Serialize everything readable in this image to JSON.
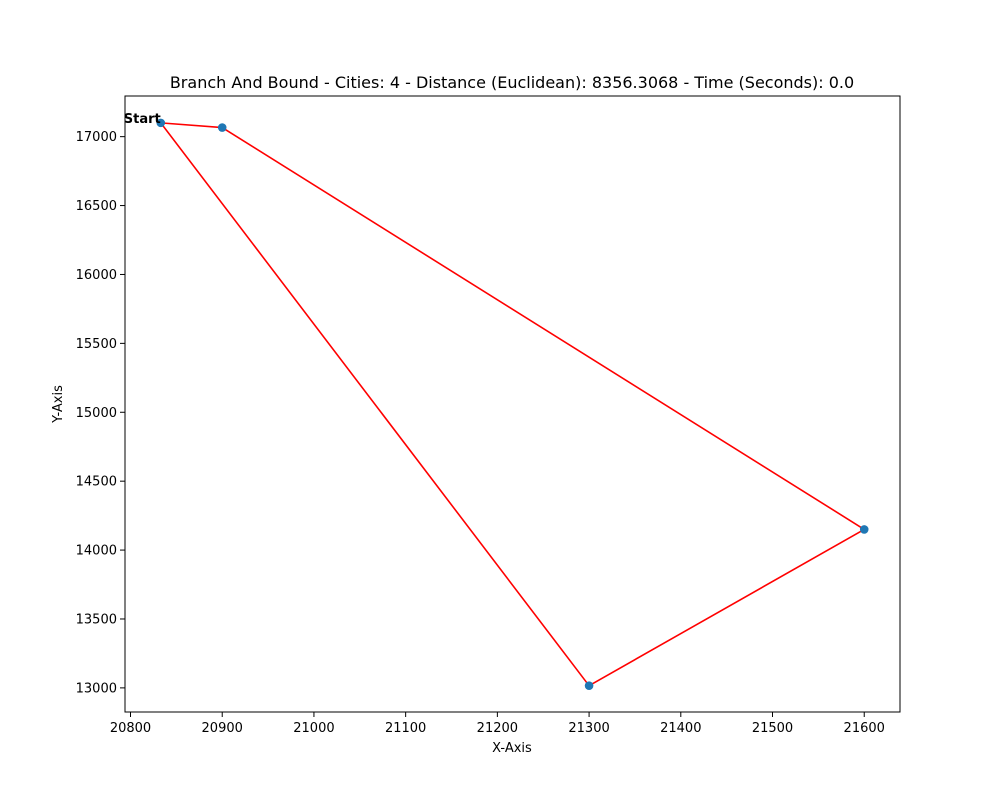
{
  "chart_data": {
    "type": "line",
    "title": "Branch And Bound - Cities: 4 - Distance (Euclidean): 8356.3068 - Time (Seconds): 0.0",
    "xlabel": "X-Axis",
    "ylabel": "Y-Axis",
    "xlim": [
      20794,
      21639
    ],
    "ylim": [
      12825,
      17295
    ],
    "xticks": [
      20800,
      20900,
      21000,
      21100,
      21200,
      21300,
      21400,
      21500,
      21600
    ],
    "yticks": [
      13000,
      13500,
      14000,
      14500,
      15000,
      15500,
      16000,
      16500,
      17000
    ],
    "grid": false,
    "points": [
      {
        "x": 20833,
        "y": 17100
      },
      {
        "x": 20900,
        "y": 17066
      },
      {
        "x": 21300,
        "y": 13016
      },
      {
        "x": 21600,
        "y": 14150
      }
    ],
    "route": [
      {
        "x": 20833,
        "y": 17100
      },
      {
        "x": 20900,
        "y": 17066
      },
      {
        "x": 21600,
        "y": 14150
      },
      {
        "x": 21300,
        "y": 13016
      },
      {
        "x": 20833,
        "y": 17100
      }
    ],
    "start_label": "Start",
    "colors": {
      "route": "#ff0000",
      "point": "#1f77b4"
    }
  }
}
